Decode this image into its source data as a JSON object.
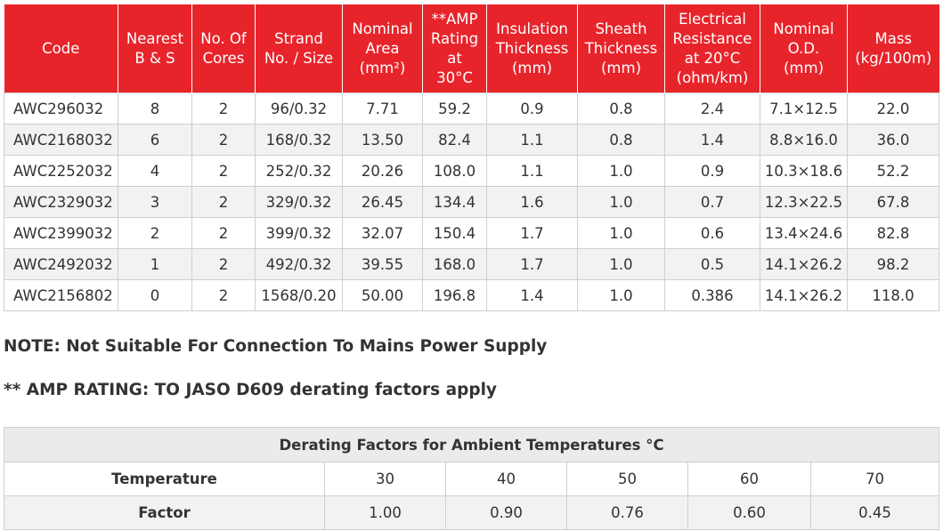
{
  "spec_table": {
    "headers": [
      "Code",
      "Nearest\nB & S",
      "No. Of\nCores",
      "Strand\nNo. / Size",
      "Nominal\nArea\n(mm²)",
      "**AMP\nRating\nat\n30°C",
      "Insulation\nThickness\n(mm)",
      "Sheath\nThickness\n(mm)",
      "Electrical\nResistance\nat 20°C\n(ohm/km)",
      "Nominal\nO.D.\n(mm)",
      "Mass\n(kg/100m)"
    ],
    "rows": [
      [
        "AWC296032",
        "8",
        "2",
        "96/0.32",
        "7.71",
        "59.2",
        "0.9",
        "0.8",
        "2.4",
        "7.1×12.5",
        "22.0"
      ],
      [
        "AWC2168032",
        "6",
        "2",
        "168/0.32",
        "13.50",
        "82.4",
        "1.1",
        "0.8",
        "1.4",
        "8.8×16.0",
        "36.0"
      ],
      [
        "AWC2252032",
        "4",
        "2",
        "252/0.32",
        "20.26",
        "108.0",
        "1.1",
        "1.0",
        "0.9",
        "10.3×18.6",
        "52.2"
      ],
      [
        "AWC2329032",
        "3",
        "2",
        "329/0.32",
        "26.45",
        "134.4",
        "1.6",
        "1.0",
        "0.7",
        "12.3×22.5",
        "67.8"
      ],
      [
        "AWC2399032",
        "2",
        "2",
        "399/0.32",
        "32.07",
        "150.4",
        "1.7",
        "1.0",
        "0.6",
        "13.4×24.6",
        "82.8"
      ],
      [
        "AWC2492032",
        "1",
        "2",
        "492/0.32",
        "39.55",
        "168.0",
        "1.7",
        "1.0",
        "0.5",
        "14.1×26.2",
        "98.2"
      ],
      [
        "AWC2156802",
        "0",
        "2",
        "1568/0.20",
        "50.00",
        "196.8",
        "1.4",
        "1.0",
        "0.386",
        "14.1×26.2",
        "118.0"
      ]
    ]
  },
  "notes": {
    "note1": "NOTE: Not Suitable For Connection To Mains Power Supply",
    "note2": "** AMP RATING: TO JASO D609 derating factors apply"
  },
  "derating_table": {
    "caption": "Derating Factors for Ambient Temperatures °C",
    "temperature_label": "Temperature",
    "temperatures": [
      "30",
      "40",
      "50",
      "60",
      "70"
    ],
    "factor_label": "Factor",
    "factors": [
      "1.00",
      "0.90",
      "0.76",
      "0.60",
      "0.45"
    ]
  },
  "colors": {
    "header_red": "#e8242b",
    "row_alt": "#f2f2f2",
    "border": "#cfcfcf"
  }
}
